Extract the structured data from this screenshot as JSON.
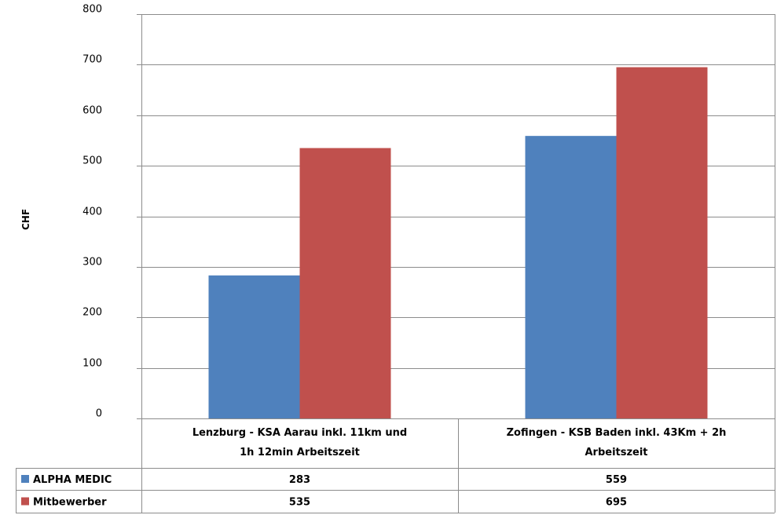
{
  "chart_data": {
    "type": "bar",
    "title": "",
    "xlabel": "",
    "ylabel": "CHF",
    "ylim": [
      0,
      800
    ],
    "yticks": [
      0,
      100,
      200,
      300,
      400,
      500,
      600,
      700,
      800
    ],
    "grid": true,
    "legend_placement": "data-table-left",
    "categories": [
      [
        "Lenzburg - KSA Aarau inkl. 11km  und",
        "1h 12min Arbeitszeit"
      ],
      [
        "Zofingen - KSB Baden inkl. 43Km + 2h",
        "Arbeitszeit"
      ]
    ],
    "series": [
      {
        "name": "ALPHA MEDIC",
        "color": "#4f81bd",
        "values": [
          283,
          559
        ],
        "value_labels": [
          "283",
          "559"
        ]
      },
      {
        "name": "Mitbewerber",
        "color": "#c0504d",
        "values": [
          535,
          695
        ],
        "value_labels": [
          "535",
          "695"
        ]
      }
    ]
  }
}
